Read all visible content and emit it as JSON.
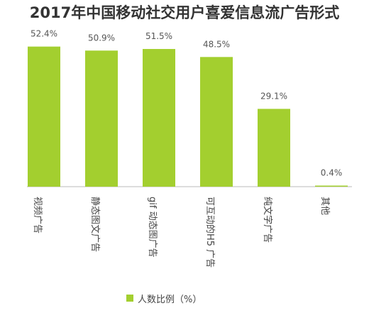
{
  "chart_data": {
    "type": "bar",
    "title": "2017年中国移动社交用户喜爱信息流广告形式",
    "categories": [
      "视频广告",
      "静态图文广告",
      "gif 动态图广告",
      "可互动的H5 广告",
      "纯文字广告",
      "其他"
    ],
    "series": [
      {
        "name": "人数比例（%）",
        "values": [
          52.4,
          50.9,
          51.5,
          48.5,
          29.1,
          0.4
        ],
        "labels": [
          "52.4%",
          "50.9%",
          "51.5%",
          "48.5%",
          "29.1%",
          "0.4%"
        ]
      }
    ],
    "ylim": [
      0,
      60
    ],
    "grid": false,
    "legend": "bottom",
    "colors": {
      "bar": "#A3CF2F",
      "axis": "#BBBBBB"
    }
  }
}
